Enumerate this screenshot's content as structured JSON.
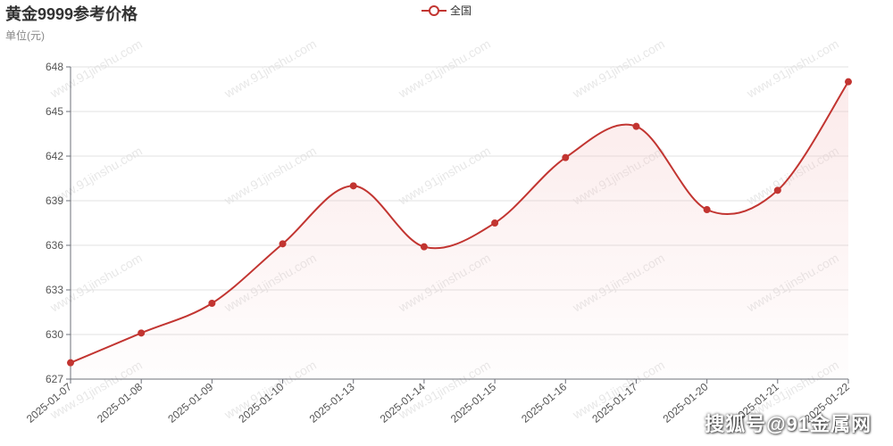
{
  "header": {
    "title": "黄金9999参考价格",
    "unit_label": "单位(元)"
  },
  "legend": {
    "label": "全国"
  },
  "background_watermark_text": "www.91jinshu.com",
  "corner_watermark": "搜狐号@91金属网",
  "colors": {
    "line": "#c23531",
    "area_top": "#f4c4c4",
    "grid": "#e0e0e0",
    "axis": "#6e7079"
  },
  "chart_data": {
    "type": "area",
    "title": "黄金9999参考价格",
    "ylabel": "单位(元)",
    "xlabel": "",
    "x": [
      "2025-01-07",
      "2025-01-08",
      "2025-01-09",
      "2025-01-10",
      "2025-01-13",
      "2025-01-14",
      "2025-01-15",
      "2025-01-16",
      "2025-01-17",
      "2025-01-20",
      "2025-01-21",
      "2025-01-22"
    ],
    "series": [
      {
        "name": "全国",
        "values": [
          628.1,
          630.1,
          632.1,
          636.1,
          640.0,
          635.9,
          637.5,
          641.9,
          644.0,
          638.4,
          639.7,
          647.0
        ]
      }
    ],
    "ylim": [
      627,
      648
    ],
    "yticks": [
      627,
      630,
      633,
      636,
      639,
      642,
      645,
      648
    ],
    "grid": true,
    "smooth": true,
    "legend_position": "top-center"
  }
}
